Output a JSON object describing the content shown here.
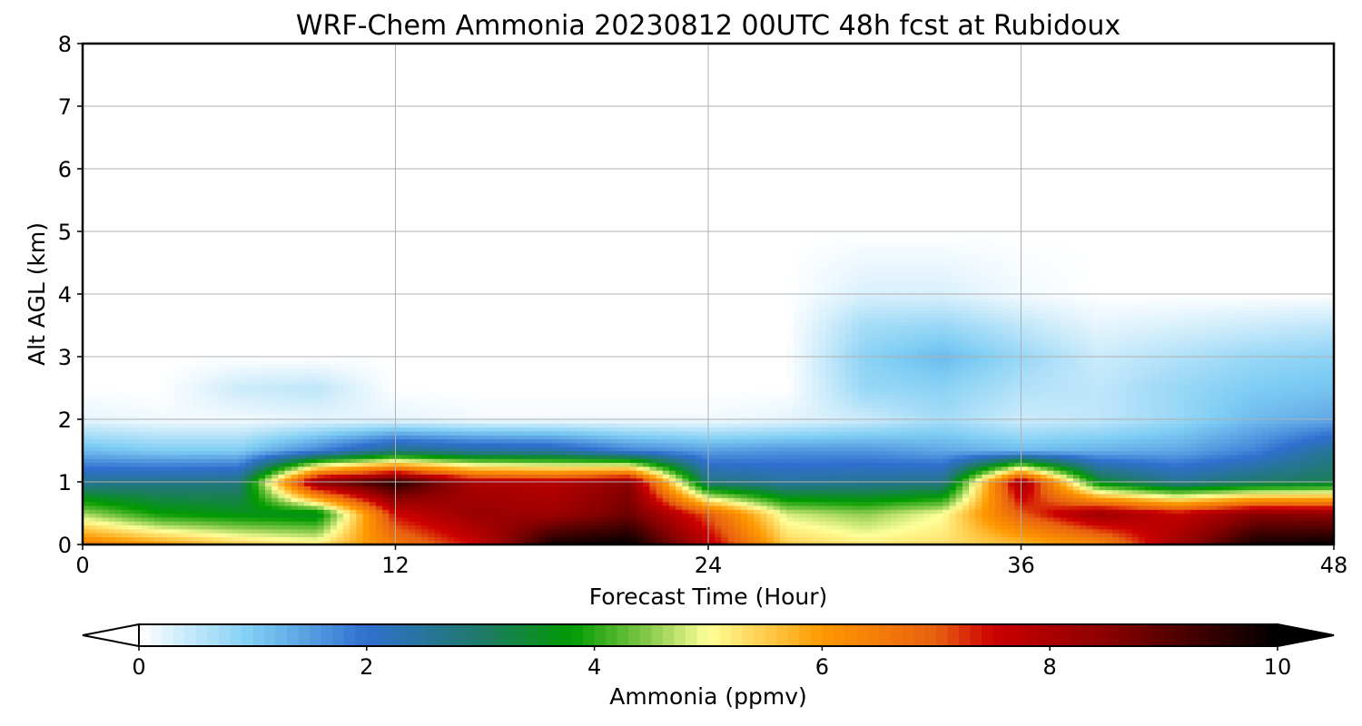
{
  "chart_data": {
    "type": "heatmap",
    "title": "WRF-Chem Ammonia  20230812 00UTC 48h fcst at Rubidoux",
    "xlabel": "Forecast Time (Hour)",
    "ylabel": "Alt AGL (km)",
    "xlim": [
      0,
      48
    ],
    "ylim": [
      0,
      8
    ],
    "x_ticks": [
      "0",
      "12",
      "24",
      "36",
      "48"
    ],
    "y_ticks": [
      "0",
      "1",
      "2",
      "3",
      "4",
      "5",
      "6",
      "7",
      "8"
    ],
    "grid": true,
    "colorbar": {
      "label": "Ammonia  (ppmv)",
      "min": 0,
      "max": 10,
      "extend": "both",
      "ticks": [
        "0",
        "2",
        "4",
        "6",
        "8",
        "10"
      ]
    },
    "x_hours": [
      0,
      3,
      6,
      9,
      12,
      15,
      18,
      21,
      24,
      27,
      30,
      33,
      36,
      39,
      42,
      45,
      48
    ],
    "y_km": [
      0,
      0.5,
      1,
      1.5,
      2,
      2.5,
      3,
      3.5,
      4,
      5,
      6,
      7,
      8
    ],
    "ammonia_ppmv": [
      [
        6.5,
        6.0,
        5.5,
        5.2,
        6.5,
        7.5,
        9.8,
        10.0,
        7.8,
        5.5,
        5.2,
        5.3,
        5.6,
        6.2,
        8.2,
        9.8,
        10.0
      ],
      [
        4.6,
        3.8,
        3.6,
        3.5,
        7.5,
        8.3,
        8.2,
        8.8,
        7.0,
        4.8,
        4.5,
        5.0,
        7.0,
        8.3,
        7.6,
        8.5,
        8.4
      ],
      [
        2.6,
        2.7,
        2.8,
        8.5,
        9.6,
        8.0,
        7.8,
        8.5,
        2.8,
        2.5,
        2.6,
        2.7,
        8.2,
        3.5,
        2.6,
        3.0,
        3.2
      ],
      [
        1.2,
        1.0,
        1.0,
        1.8,
        2.8,
        2.5,
        2.4,
        1.8,
        1.5,
        1.6,
        1.6,
        1.4,
        1.2,
        1.3,
        1.4,
        1.8,
        2.6
      ],
      [
        0.2,
        0.1,
        0.1,
        0.2,
        0.2,
        0.1,
        0.1,
        0.1,
        0.1,
        0.2,
        0.4,
        0.7,
        0.4,
        0.5,
        0.8,
        1.2,
        1.4
      ],
      [
        0.0,
        0.0,
        0.4,
        0.5,
        0.0,
        0.0,
        0.0,
        0.0,
        0.0,
        0.0,
        0.8,
        0.9,
        0.6,
        0.5,
        0.8,
        1.0,
        1.1
      ],
      [
        0.0,
        0.0,
        0.0,
        0.0,
        0.0,
        0.0,
        0.0,
        0.0,
        0.0,
        0.0,
        0.9,
        1.2,
        0.8,
        0.4,
        0.6,
        0.8,
        0.9
      ],
      [
        0.0,
        0.0,
        0.0,
        0.0,
        0.0,
        0.0,
        0.0,
        0.0,
        0.0,
        0.0,
        0.7,
        0.8,
        0.5,
        0.2,
        0.3,
        0.4,
        0.5
      ],
      [
        0.0,
        0.0,
        0.0,
        0.0,
        0.0,
        0.0,
        0.0,
        0.0,
        0.0,
        0.0,
        0.3,
        0.3,
        0.1,
        0.0,
        0.0,
        0.0,
        0.0
      ],
      [
        0.0,
        0.0,
        0.0,
        0.0,
        0.0,
        0.0,
        0.0,
        0.0,
        0.0,
        0.0,
        0.0,
        0.0,
        0.0,
        0.0,
        0.0,
        0.0,
        0.0
      ],
      [
        0.0,
        0.0,
        0.0,
        0.0,
        0.0,
        0.0,
        0.0,
        0.0,
        0.0,
        0.0,
        0.0,
        0.0,
        0.0,
        0.0,
        0.0,
        0.0,
        0.0
      ],
      [
        0.0,
        0.0,
        0.0,
        0.0,
        0.0,
        0.0,
        0.0,
        0.0,
        0.0,
        0.0,
        0.0,
        0.0,
        0.0,
        0.0,
        0.0,
        0.0,
        0.0
      ],
      [
        0.0,
        0.0,
        0.0,
        0.0,
        0.0,
        0.0,
        0.0,
        0.0,
        0.0,
        0.0,
        0.0,
        0.0,
        0.0,
        0.0,
        0.0,
        0.0,
        0.0
      ]
    ],
    "color_stops": [
      [
        0,
        "#ffffff"
      ],
      [
        1,
        "#7ecdf4"
      ],
      [
        2,
        "#2f6fcf"
      ],
      [
        3,
        "#1f7a6a"
      ],
      [
        3.8,
        "#009a00"
      ],
      [
        4.5,
        "#8ccc4e"
      ],
      [
        5,
        "#ffff99"
      ],
      [
        6,
        "#ff9900"
      ],
      [
        7,
        "#e86010"
      ],
      [
        7.5,
        "#cc0000"
      ],
      [
        8.5,
        "#8b0000"
      ],
      [
        10,
        "#000000"
      ]
    ],
    "grid_color": "#b0b0b0"
  }
}
